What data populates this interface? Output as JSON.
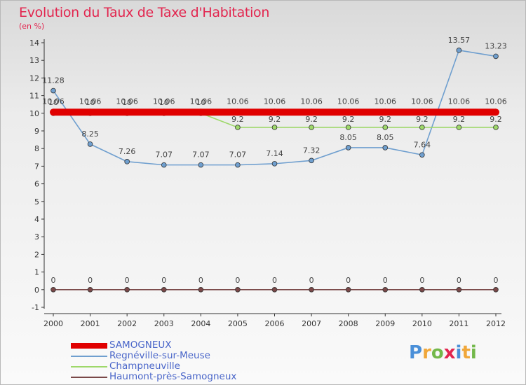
{
  "title": "Evolution du Taux de Taxe d'Habitation",
  "subtitle": "(en %)",
  "logo": {
    "text": "Proxiti",
    "letters": [
      "P",
      "r",
      "o",
      "x",
      "i",
      "t",
      "i"
    ]
  },
  "chart_data": {
    "type": "line",
    "x": [
      "2000",
      "2001",
      "2002",
      "2003",
      "2004",
      "2005",
      "2006",
      "2007",
      "2008",
      "2009",
      "2010",
      "2011",
      "2012"
    ],
    "ylim": [
      -1,
      14
    ],
    "yticks": [
      -1,
      0,
      1,
      2,
      3,
      4,
      5,
      6,
      7,
      8,
      9,
      10,
      11,
      12,
      13,
      14
    ],
    "grid": false,
    "legend_position": "bottom-left",
    "series": [
      {
        "name": "SAMOGNEUX",
        "color": "#e00000",
        "values": [
          10.06,
          10.06,
          10.06,
          10.06,
          10.06,
          10.06,
          10.06,
          10.06,
          10.06,
          10.06,
          10.06,
          10.06,
          10.06
        ],
        "labels": [
          "10.06",
          "10.06",
          "10.06",
          "10.06",
          "10.06",
          "10.06",
          "10.06",
          "10.06",
          "10.06",
          "10.06",
          "10.06",
          "10.06",
          "10.06"
        ]
      },
      {
        "name": "Regnéville-sur-Meuse",
        "color": "#6f9fcf",
        "values": [
          11.28,
          8.25,
          7.26,
          7.07,
          7.07,
          7.07,
          7.14,
          7.32,
          8.05,
          8.05,
          7.64,
          13.57,
          13.23
        ],
        "labels": [
          "11.28",
          "8.25",
          "7.26",
          "7.07",
          "7.07",
          "7.07",
          "7.14",
          "7.32",
          "8.05",
          "8.05",
          "7.64",
          "13.57",
          "13.23"
        ]
      },
      {
        "name": "Champneuville",
        "color": "#9ed86a",
        "values": [
          10,
          10,
          10,
          10,
          10,
          9.2,
          9.2,
          9.2,
          9.2,
          9.2,
          9.2,
          9.2,
          9.2
        ],
        "labels": [
          "10",
          "10",
          "10",
          "10",
          "10",
          "9.2",
          "9.2",
          "9.2",
          "9.2",
          "9.2",
          "9.2",
          "9.2",
          "9.2"
        ]
      },
      {
        "name": "Haumont-près-Samogneux",
        "color": "#7a4848",
        "values": [
          0,
          0,
          0,
          0,
          0,
          0,
          0,
          0,
          0,
          0,
          0,
          0,
          0
        ],
        "labels": [
          "0",
          "0",
          "0",
          "0",
          "0",
          "0",
          "0",
          "0",
          "0",
          "0",
          "0",
          "0",
          "0"
        ]
      }
    ]
  }
}
